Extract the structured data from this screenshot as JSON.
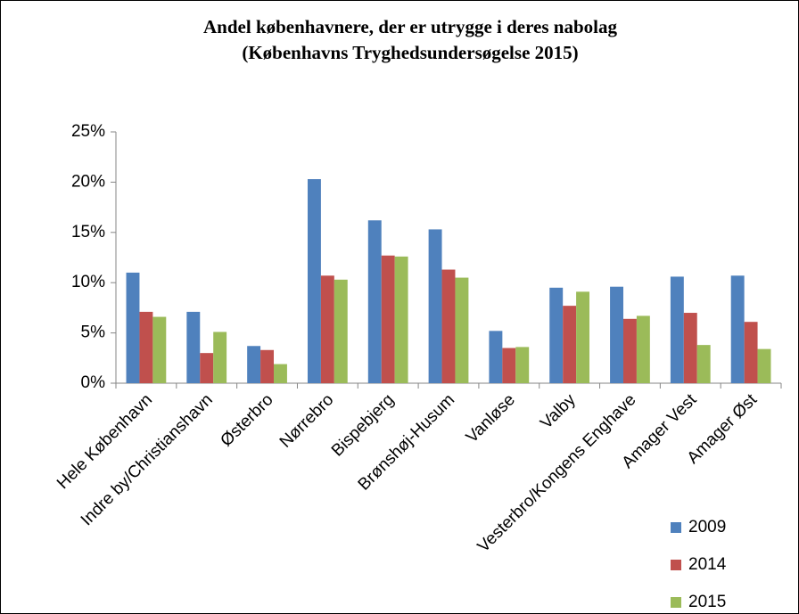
{
  "chart_data": {
    "type": "bar",
    "title": "Andel københavnere, der er utrygge i deres nabolag",
    "subtitle": "(Københavns Tryghedsundersøgelse 2015)",
    "categories": [
      "Hele København",
      "Indre by/Christianshavn",
      "Østerbro",
      "Nørrebro",
      "Bispebjerg",
      "Brønshøj-Husum",
      "Vanløse",
      "Valby",
      "Vesterbro/Kongens Enghave",
      "Amager Vest",
      "Amager Øst"
    ],
    "series": [
      {
        "name": "2009",
        "color": "#4f81bd",
        "values": [
          11.0,
          7.1,
          3.7,
          20.3,
          16.2,
          15.3,
          5.2,
          9.5,
          9.6,
          10.6,
          10.7
        ]
      },
      {
        "name": "2014",
        "color": "#c0504d",
        "values": [
          7.1,
          3.0,
          3.3,
          10.7,
          12.7,
          11.3,
          3.5,
          7.7,
          6.4,
          7.0,
          6.1
        ]
      },
      {
        "name": "2015",
        "color": "#9bbb59",
        "values": [
          6.6,
          5.1,
          1.9,
          10.3,
          12.6,
          10.5,
          3.6,
          9.1,
          6.7,
          3.8,
          3.4
        ]
      }
    ],
    "ylim": [
      0,
      25
    ],
    "yticks": [
      {
        "value": 0,
        "label": "0%"
      },
      {
        "value": 5,
        "label": "5%"
      },
      {
        "value": 10,
        "label": "10%"
      },
      {
        "value": 15,
        "label": "15%"
      },
      {
        "value": 20,
        "label": "20%"
      },
      {
        "value": 25,
        "label": "25%"
      }
    ],
    "grid": false,
    "legend": "bottom-right"
  }
}
